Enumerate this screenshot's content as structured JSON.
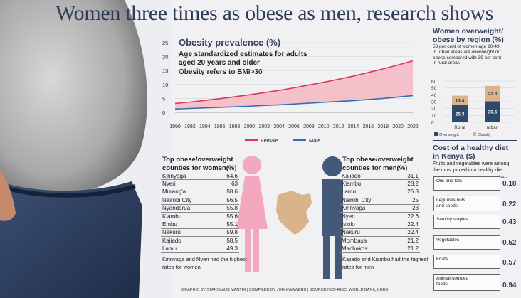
{
  "headline": "Women three times as obese as men, research shows",
  "main_chart": {
    "title": "Obesity prevalence (%)",
    "subtitle_lines": [
      "Age standardized estimates for adults",
      "aged 20 years and older"
    ],
    "note": "Obesity refers to BMI>30",
    "legend_female": "Female",
    "legend_male": "Male",
    "y_ticks": [
      "25",
      "20",
      "15",
      "10",
      "5",
      "0"
    ],
    "x_ticks": [
      "1990",
      "1992",
      "1994",
      "1996",
      "1998",
      "2000",
      "2002",
      "2004",
      "2006",
      "2008",
      "2010",
      "2012",
      "2014",
      "2016",
      "2018",
      "2020",
      "2022"
    ]
  },
  "region_chart": {
    "title_lines": [
      "Women overweight/",
      "obese by region (%)"
    ],
    "desc_lines": [
      "53 per cent of women age 20-49",
      "in urban areas are overweight or",
      "obese compared with 39 per cent",
      "in rural areas"
    ],
    "y_ticks": [
      "60",
      "50",
      "40",
      "30",
      "20",
      "10",
      "0"
    ],
    "categories": [
      "Rural",
      "urban"
    ],
    "overweight_values": [
      "25.3",
      "30.6"
    ],
    "obesity_values": [
      "13.4",
      "22.3"
    ],
    "legend_overweight": "Overweight",
    "legend_obesity": "Obesity"
  },
  "women_list": {
    "title_lines": [
      "Top obese/overweight",
      "counties for women(%)"
    ],
    "rows": [
      {
        "name": "Kirinyaga",
        "value": "64.6"
      },
      {
        "name": "Nyeri",
        "value": "63"
      },
      {
        "name": "Murang'a",
        "value": "58.6"
      },
      {
        "name": "Nairobi City",
        "value": "56.5"
      },
      {
        "name": "Nyandarua",
        "value": "55.8"
      },
      {
        "name": "Kiambu",
        "value": "55.6"
      },
      {
        "name": "Embu",
        "value": "55.1"
      },
      {
        "name": "Nakuru",
        "value": "59.8"
      },
      {
        "name": "Kajiado",
        "value": "58.5"
      },
      {
        "name": "Lamu",
        "value": "49.3"
      }
    ],
    "note_lines": [
      "Kirinyaga and Nyeri had the highest",
      "rates for women"
    ]
  },
  "men_list": {
    "title_lines": [
      "Top obese/overweight",
      "counties for men(%)"
    ],
    "rows": [
      {
        "name": "Kajiado",
        "value": "31.1"
      },
      {
        "name": "Kiambu",
        "value": "28.2"
      },
      {
        "name": "Lamu",
        "value": "25.8"
      },
      {
        "name": "Nairobi City",
        "value": "25"
      },
      {
        "name": "Kirinyaga",
        "value": "23"
      },
      {
        "name": "Nyeri",
        "value": "22.6"
      },
      {
        "name": "Isiolo",
        "value": "22.4"
      },
      {
        "name": "Nakuru",
        "value": "22.4"
      },
      {
        "name": "Mombasa",
        "value": "21.2"
      },
      {
        "name": "Machakos",
        "value": "21.2"
      }
    ],
    "note_lines": [
      "Kajiado and Kiambu had the highest",
      "rates for men"
    ]
  },
  "cost_panel": {
    "title_lines": [
      "Cost of a healthy diet",
      "in Kenya ($)"
    ],
    "desc_lines": [
      "Fruits and vegetables were among",
      "the most priced in a healthy diet"
    ],
    "as_of": "*As of 2017",
    "items": [
      {
        "label_lines": [
          "Oils and fats"
        ],
        "value": "0.18"
      },
      {
        "label_lines": [
          "Legumes,nuts",
          "and seeds"
        ],
        "value": "0.22"
      },
      {
        "label_lines": [
          "Starchy staples"
        ],
        "value": "0.43"
      },
      {
        "label_lines": [
          "Vegetables"
        ],
        "value": "0.52"
      },
      {
        "label_lines": [
          "Fruits"
        ],
        "value": "0.57"
      },
      {
        "label_lines": [
          "Animal-sourced",
          "foods"
        ],
        "value": "0.94"
      }
    ]
  },
  "footer": "GRAPHIC BY STANSLAUS MANTHI | COMPILED BY JOHN WAWERU | SOURCE:NCD-RISC, WORLD BANK, KDHS",
  "colors": {
    "female": "#d9385a",
    "female_fill": "#f4b8c2",
    "male": "#2e6fb5",
    "overweight": "#2e4a6b",
    "obesity": "#d9b48a",
    "navy": "#2e3b59"
  },
  "chart_data": [
    {
      "type": "area",
      "title": "Obesity prevalence (%)",
      "x": [
        1990,
        1992,
        1994,
        1996,
        1998,
        2000,
        2002,
        2004,
        2006,
        2008,
        2010,
        2012,
        2014,
        2016,
        2018,
        2020,
        2022
      ],
      "series": [
        {
          "name": "Female",
          "values": [
            3.2,
            3.7,
            4.3,
            4.9,
            5.6,
            6.3,
            7.1,
            7.9,
            8.8,
            9.8,
            10.8,
            11.9,
            13.0,
            14.3,
            15.6,
            17.0,
            18.5
          ]
        },
        {
          "name": "Male",
          "values": [
            1.2,
            1.4,
            1.6,
            1.8,
            2.0,
            2.2,
            2.5,
            2.7,
            3.0,
            3.3,
            3.6,
            3.9,
            4.2,
            4.6,
            5.0,
            5.5,
            6.0
          ]
        }
      ],
      "ylim": [
        0,
        25
      ],
      "legend": "bottom"
    },
    {
      "type": "bar",
      "stacked": true,
      "title": "Women overweight/obese by region (%)",
      "categories": [
        "Rural",
        "urban"
      ],
      "series": [
        {
          "name": "Overweight",
          "values": [
            25.3,
            30.6
          ]
        },
        {
          "name": "Obesity",
          "values": [
            13.4,
            22.3
          ]
        }
      ],
      "ylim": [
        0,
        60
      ],
      "legend": "bottom"
    },
    {
      "type": "bar",
      "title": "Cost of a healthy diet in Kenya ($)",
      "categories": [
        "Oils and fats",
        "Legumes,nuts and seeds",
        "Starchy staples",
        "Vegetables",
        "Fruits",
        "Animal-sourced foods"
      ],
      "values": [
        0.18,
        0.22,
        0.43,
        0.52,
        0.57,
        0.94
      ]
    }
  ]
}
